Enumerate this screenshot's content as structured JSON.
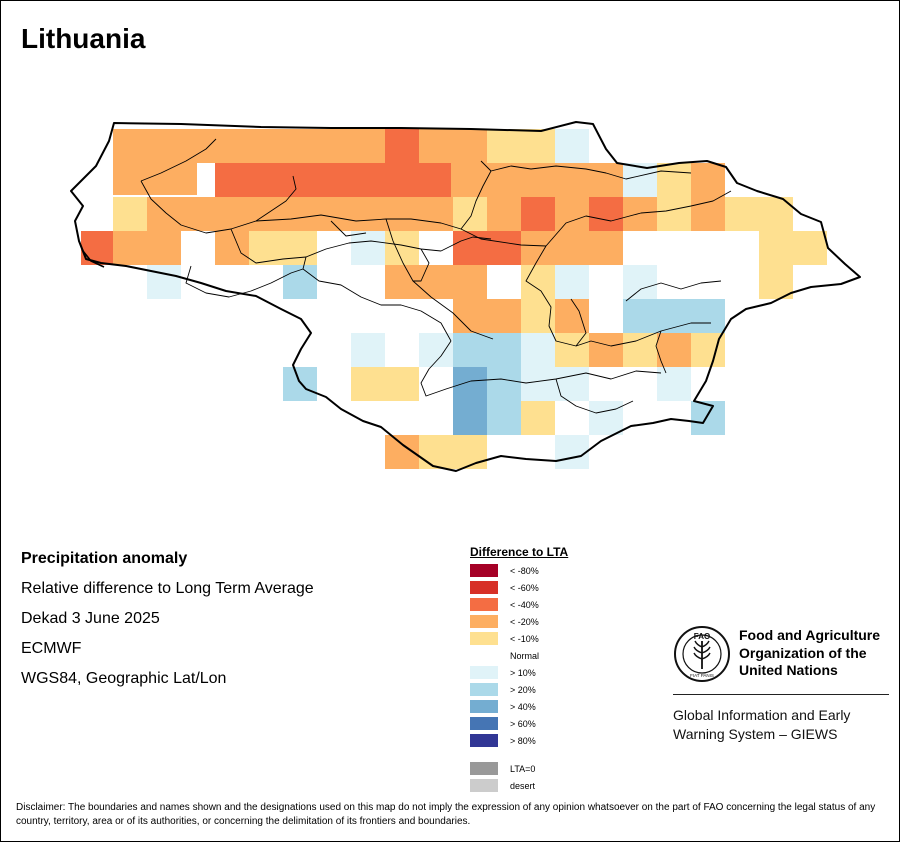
{
  "map": {
    "title": "Lithuania"
  },
  "info": {
    "heading": "Precipitation anomaly",
    "subtitle": "Relative difference to Long Term Average",
    "period": "Dekad 3 June 2025",
    "source": "ECMWF",
    "projection": "WGS84, Geographic Lat/Lon"
  },
  "legend": {
    "title": "Difference to LTA",
    "items": [
      {
        "label": "< -80%",
        "color": "#a50026"
      },
      {
        "label": "< -60%",
        "color": "#d73027"
      },
      {
        "label": "< -40%",
        "color": "#f46d43"
      },
      {
        "label": "< -20%",
        "color": "#fdae61"
      },
      {
        "label": "< -10%",
        "color": "#fee090"
      },
      {
        "label": "Normal",
        "color": "#ffffff"
      },
      {
        "label": "> 10%",
        "color": "#e0f3f8"
      },
      {
        "label": "> 20%",
        "color": "#abd9e9"
      },
      {
        "label": "> 40%",
        "color": "#74add1"
      },
      {
        "label": "> 60%",
        "color": "#4575b4"
      },
      {
        "label": "> 80%",
        "color": "#313695"
      },
      {
        "label": "LTA=0",
        "color": "#999999"
      },
      {
        "label": "desert",
        "color": "#cccccc"
      }
    ]
  },
  "fao": {
    "name": "Food and Agriculture\nOrganization of the\nUnited Nations",
    "emblem_letters": "FAO",
    "emblem_motto": "FIAT PANIS",
    "system": "Global Information and Early\nWarning System – GIEWS"
  },
  "disclaimer": "Disclaimer: The boundaries and names shown and the designations used on this map do not imply the expression of any opinion whatsoever on the part of FAO concerning the legal status of any country, territory, area or of its authorities, or concerning the delimitation of its frontiers and boundaries."
}
